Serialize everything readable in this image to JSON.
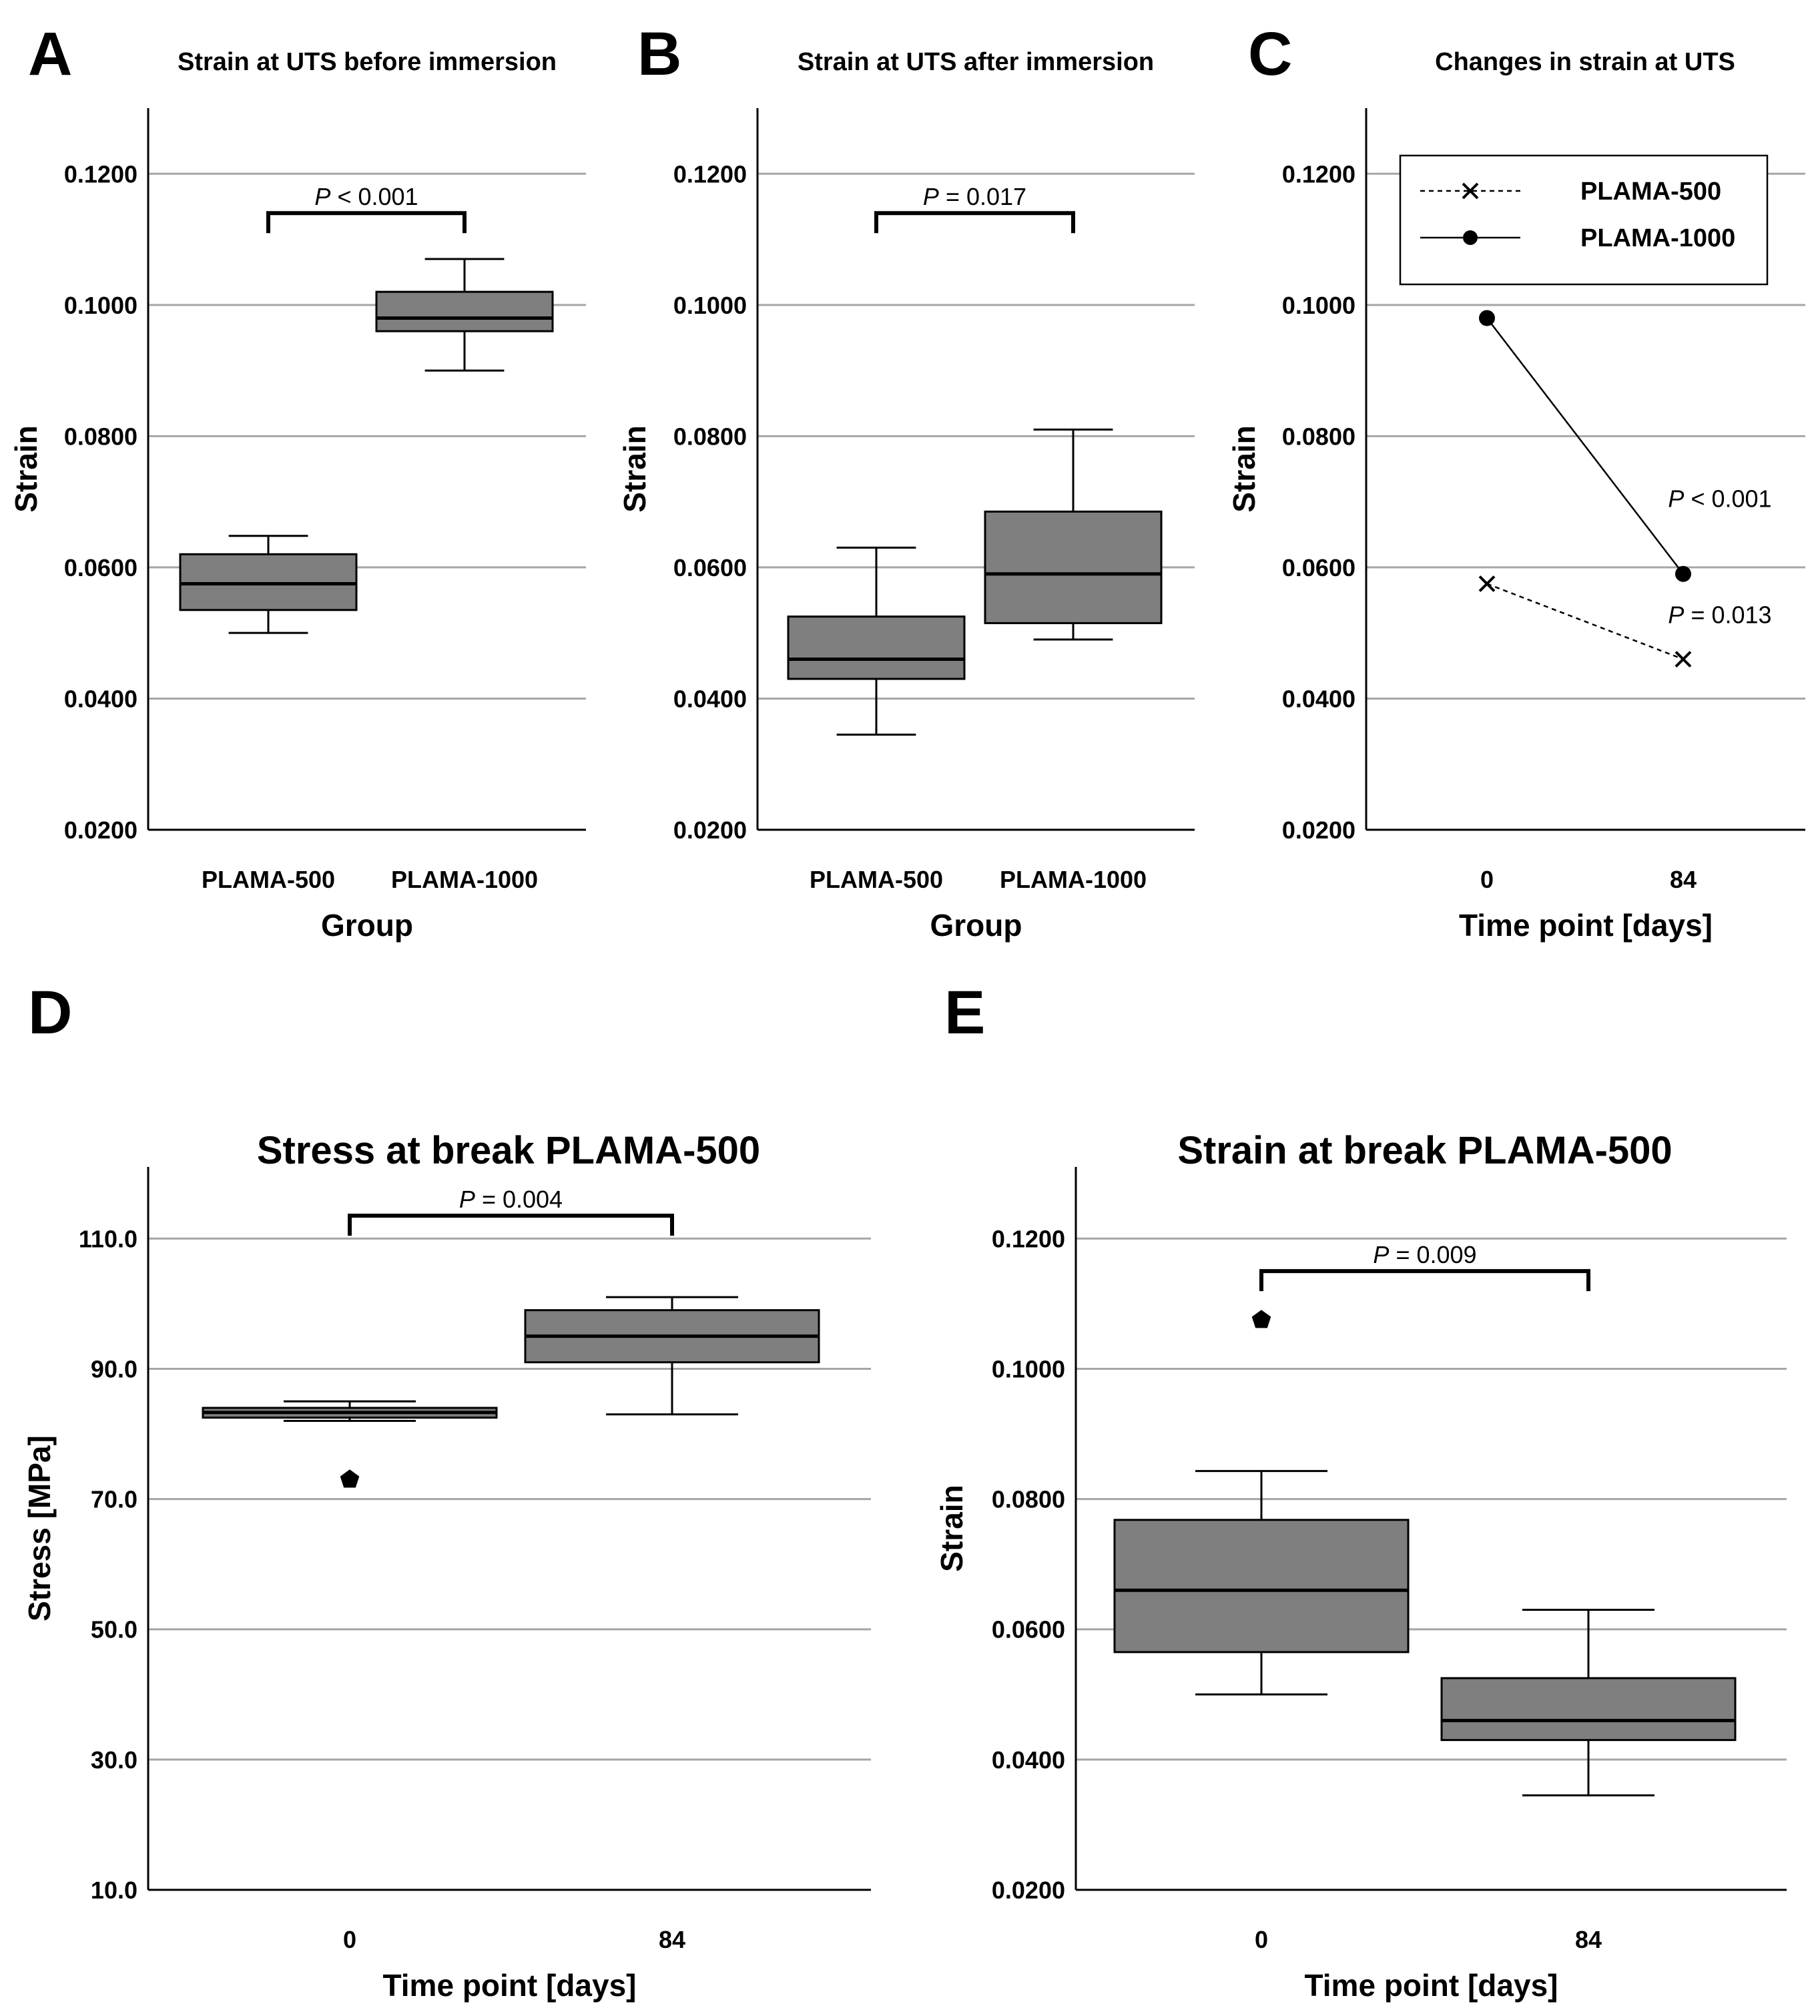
{
  "panels": [
    {
      "letter": "A"
    },
    {
      "letter": "B"
    },
    {
      "letter": "C"
    },
    {
      "letter": "D"
    },
    {
      "letter": "E"
    }
  ],
  "colors": {
    "box_fill": "#7f7f7f",
    "grid": "#a6a6a6",
    "ink": "#000000"
  },
  "chart_data": [
    {
      "type": "box",
      "panel": "A",
      "title": "Strain at UTS before immersion",
      "xlabel": "Group",
      "ylabel": "Strain",
      "ylim": [
        0.02,
        0.13
      ],
      "yticks": [
        "0.0200",
        "0.0400",
        "0.0600",
        "0.0800",
        "0.1000",
        "0.1200"
      ],
      "categories": [
        "PLAMA-500",
        "PLAMA-1000"
      ],
      "boxes": [
        {
          "whisker_low": 0.05,
          "q1": 0.0535,
          "median": 0.0575,
          "q3": 0.062,
          "whisker_high": 0.0648,
          "outliers": []
        },
        {
          "whisker_low": 0.09,
          "q1": 0.096,
          "median": 0.098,
          "q3": 0.102,
          "whisker_high": 0.107,
          "outliers": []
        }
      ],
      "annotation": {
        "p_symbol": "P",
        "text": " < 0.001",
        "y": 0.114
      }
    },
    {
      "type": "box",
      "panel": "B",
      "title": "Strain at UTS after immersion",
      "xlabel": "Group",
      "ylabel": "Strain",
      "ylim": [
        0.02,
        0.13
      ],
      "yticks": [
        "0.0200",
        "0.0400",
        "0.0600",
        "0.0800",
        "0.1000",
        "0.1200"
      ],
      "categories": [
        "PLAMA-500",
        "PLAMA-1000"
      ],
      "boxes": [
        {
          "whisker_low": 0.0345,
          "q1": 0.043,
          "median": 0.046,
          "q3": 0.0525,
          "whisker_high": 0.063,
          "outliers": []
        },
        {
          "whisker_low": 0.049,
          "q1": 0.0515,
          "median": 0.059,
          "q3": 0.0685,
          "whisker_high": 0.081,
          "outliers": []
        }
      ],
      "annotation": {
        "p_symbol": "P",
        "text": " = 0.017",
        "y": 0.114
      }
    },
    {
      "type": "line",
      "panel": "C",
      "title": "Changes in strain at UTS",
      "xlabel": "Time point [days]",
      "ylabel": "Strain",
      "ylim": [
        0.02,
        0.13
      ],
      "yticks": [
        "0.0200",
        "0.0400",
        "0.0600",
        "0.0800",
        "0.1000",
        "0.1200"
      ],
      "categories": [
        "0",
        "84"
      ],
      "legend_position": "top",
      "series": [
        {
          "name": "PLAMA-500",
          "values": [
            0.0575,
            0.046
          ],
          "marker": "x",
          "style": "dashed"
        },
        {
          "name": "PLAMA-1000",
          "values": [
            0.098,
            0.059
          ],
          "marker": "circle",
          "style": "solid"
        }
      ],
      "annotations": [
        {
          "p_symbol": "P",
          "text": " < 0.001",
          "x_index": 1,
          "y": 0.0705
        },
        {
          "p_symbol": "P",
          "text": " = 0.013",
          "x_index": 1,
          "y": 0.0528
        }
      ]
    },
    {
      "type": "box",
      "panel": "D",
      "title": "Stress at break PLAMA-500",
      "xlabel": "Time point [days]",
      "ylabel": "Stress [MPa]",
      "ylim": [
        10,
        121
      ],
      "yticks": [
        "10.0",
        "30.0",
        "50.0",
        "70.0",
        "90.0",
        "110.0"
      ],
      "categories": [
        "0",
        "84"
      ],
      "boxes": [
        {
          "whisker_low": 82.0,
          "q1": 82.5,
          "median": 83.3,
          "q3": 84.0,
          "whisker_high": 85.0,
          "outliers": [
            73.0
          ]
        },
        {
          "whisker_low": 83.0,
          "q1": 91.0,
          "median": 95.0,
          "q3": 99.0,
          "whisker_high": 101.0,
          "outliers": []
        }
      ],
      "annotation": {
        "p_symbol": "P",
        "text": " = 0.004",
        "y": 113.5
      }
    },
    {
      "type": "box",
      "panel": "E",
      "title": "Strain at break PLAMA-500",
      "xlabel": "Time point [days]",
      "ylabel": "Strain",
      "ylim": [
        0.02,
        0.131
      ],
      "yticks": [
        "0.0200",
        "0.0400",
        "0.0600",
        "0.0800",
        "0.1000",
        "0.1200"
      ],
      "categories": [
        "0",
        "84"
      ],
      "boxes": [
        {
          "whisker_low": 0.05,
          "q1": 0.0565,
          "median": 0.066,
          "q3": 0.0768,
          "whisker_high": 0.0843,
          "outliers": [
            0.1075
          ]
        },
        {
          "whisker_low": 0.0345,
          "q1": 0.043,
          "median": 0.046,
          "q3": 0.0525,
          "whisker_high": 0.063,
          "outliers": []
        }
      ],
      "annotation": {
        "p_symbol": "P",
        "text": " = 0.009",
        "y": 0.115
      }
    }
  ]
}
